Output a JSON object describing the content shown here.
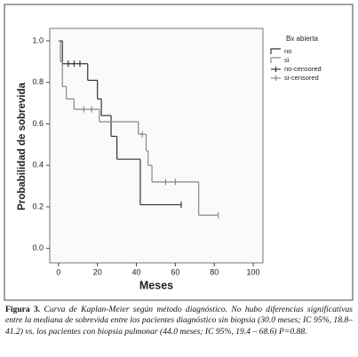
{
  "chart_data": {
    "type": "kaplan-meier",
    "xlabel": "Meses",
    "ylabel": "Probabilidad de sobrevida",
    "legend_title": "Bx abierta",
    "legend": "upper-right",
    "xlim": [
      -4.5,
      105
    ],
    "ylim": [
      -0.07,
      1.06
    ],
    "xticks": [
      0,
      20,
      40,
      60,
      80,
      100
    ],
    "yticks": [
      {
        "value": 0,
        "label": "0.0"
      },
      0.2,
      0.4,
      0.6,
      0.8,
      {
        "value": 1,
        "label": "1.0"
      }
    ],
    "series": [
      {
        "name": "no",
        "color": "#333333",
        "kind": "step",
        "x": [
          0,
          2,
          15,
          20,
          22,
          27,
          30,
          42,
          63
        ],
        "values": [
          1.0,
          0.89,
          0.81,
          0.72,
          0.64,
          0.54,
          0.43,
          0.21,
          0.21
        ]
      },
      {
        "name": "si",
        "color": "#888888",
        "kind": "step",
        "x": [
          0,
          1,
          2,
          4,
          8,
          21,
          41,
          45,
          46,
          48,
          72,
          82
        ],
        "values": [
          1.0,
          0.9,
          0.78,
          0.72,
          0.67,
          0.61,
          0.55,
          0.47,
          0.4,
          0.32,
          0.16,
          0.16
        ]
      },
      {
        "name": "no-censored",
        "color": "#333333",
        "kind": "censor",
        "x": [
          5,
          8,
          11,
          63
        ],
        "values": [
          0.89,
          0.89,
          0.89,
          0.21
        ]
      },
      {
        "name": "si-censored",
        "color": "#888888",
        "kind": "censor",
        "x": [
          13,
          17,
          43,
          55,
          60,
          82
        ],
        "values": [
          0.67,
          0.67,
          0.55,
          0.32,
          0.32,
          0.16
        ]
      }
    ]
  },
  "caption": {
    "label": "Figura 3.",
    "text": "Curva de Kaplan-Meier según método diagnóstico. No hubo diferencias significativas entre la mediana de sobrevida entre los pacientes diagnóstico sin biopsia (30.0 meses; IC 95%, 18.8– 41.2) vs. los pacientes con biopsia pulmonar (44.0 meses; IC 95%, 19.4 – 68.6) P=0.88."
  }
}
